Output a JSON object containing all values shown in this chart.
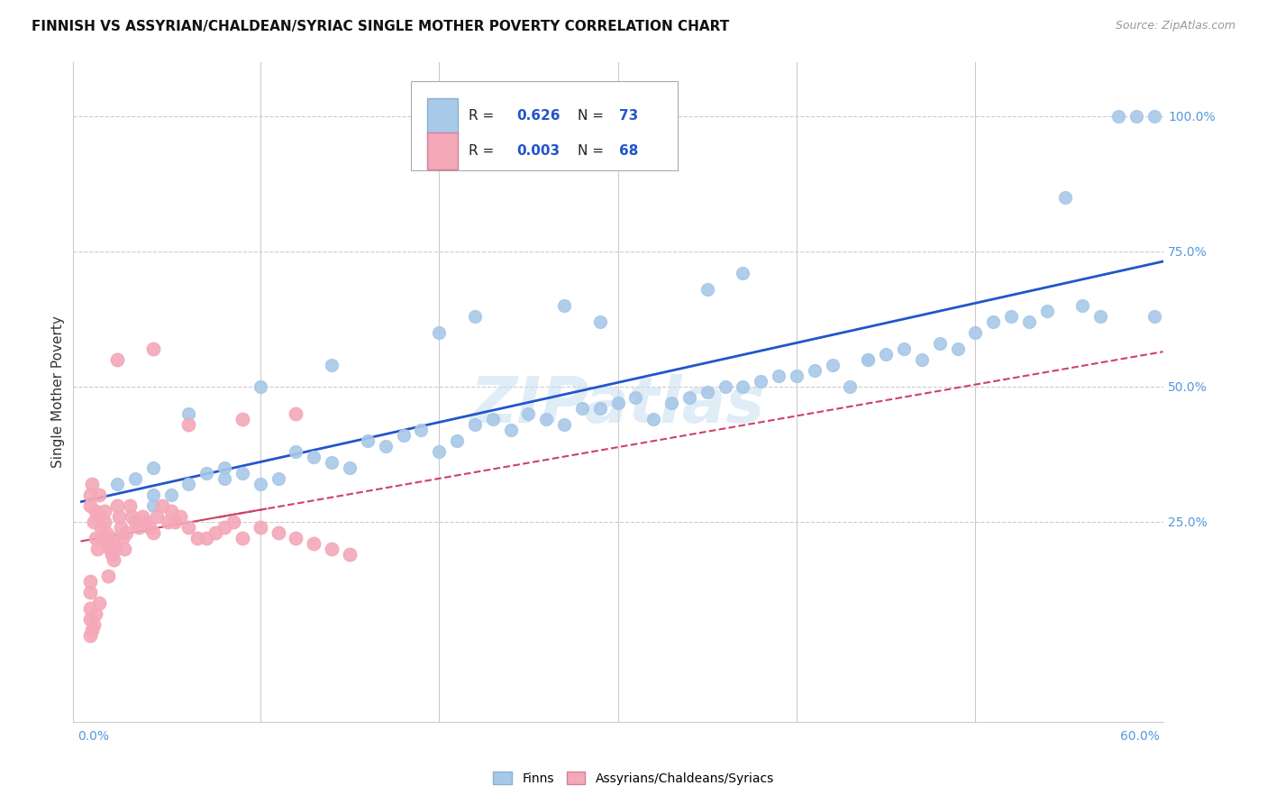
{
  "title": "FINNISH VS ASSYRIAN/CHALDEAN/SYRIAC SINGLE MOTHER POVERTY CORRELATION CHART",
  "source": "Source: ZipAtlas.com",
  "ylabel": "Single Mother Poverty",
  "xlim": [
    0.0,
    0.6
  ],
  "ylim": [
    0.0,
    1.05
  ],
  "watermark": "ZIPatlas",
  "blue_color": "#a8c8e8",
  "pink_color": "#f4a8b8",
  "trend_blue": "#2255cc",
  "trend_pink": "#cc4466",
  "legend_label1": "Finns",
  "legend_label2": "Assyrians/Chaldeans/Syriacs",
  "grid_color": "#cccccc",
  "background_color": "#ffffff",
  "blue_x": [
    0.02,
    0.03,
    0.04,
    0.04,
    0.05,
    0.06,
    0.07,
    0.08,
    0.08,
    0.09,
    0.1,
    0.11,
    0.12,
    0.13,
    0.14,
    0.15,
    0.16,
    0.17,
    0.18,
    0.19,
    0.2,
    0.21,
    0.22,
    0.23,
    0.24,
    0.25,
    0.26,
    0.27,
    0.28,
    0.29,
    0.3,
    0.31,
    0.32,
    0.33,
    0.34,
    0.35,
    0.36,
    0.37,
    0.38,
    0.39,
    0.4,
    0.41,
    0.42,
    0.43,
    0.44,
    0.45,
    0.46,
    0.47,
    0.48,
    0.49,
    0.5,
    0.51,
    0.52,
    0.53,
    0.54,
    0.55,
    0.56,
    0.57,
    0.58,
    0.59,
    0.6,
    0.6,
    0.37,
    0.35,
    0.27,
    0.2,
    0.14,
    0.1,
    0.06,
    0.04,
    0.29,
    0.22,
    0.44
  ],
  "blue_y": [
    0.32,
    0.33,
    0.28,
    0.35,
    0.3,
    0.32,
    0.34,
    0.33,
    0.35,
    0.34,
    0.32,
    0.33,
    0.38,
    0.37,
    0.36,
    0.35,
    0.4,
    0.39,
    0.41,
    0.42,
    0.38,
    0.4,
    0.43,
    0.44,
    0.42,
    0.45,
    0.44,
    0.43,
    0.46,
    0.46,
    0.47,
    0.48,
    0.44,
    0.47,
    0.48,
    0.49,
    0.5,
    0.5,
    0.51,
    0.52,
    0.52,
    0.53,
    0.54,
    0.5,
    0.55,
    0.56,
    0.57,
    0.55,
    0.58,
    0.57,
    0.6,
    0.62,
    0.63,
    0.62,
    0.64,
    0.85,
    0.65,
    0.63,
    1.0,
    1.0,
    1.0,
    0.63,
    0.71,
    0.68,
    0.65,
    0.6,
    0.54,
    0.5,
    0.45,
    0.3,
    0.62,
    0.63,
    0.55
  ],
  "pink_x": [
    0.005,
    0.005,
    0.006,
    0.007,
    0.008,
    0.008,
    0.009,
    0.01,
    0.01,
    0.011,
    0.012,
    0.013,
    0.013,
    0.014,
    0.015,
    0.016,
    0.017,
    0.018,
    0.018,
    0.019,
    0.02,
    0.021,
    0.022,
    0.023,
    0.024,
    0.025,
    0.027,
    0.028,
    0.03,
    0.032,
    0.034,
    0.036,
    0.038,
    0.04,
    0.042,
    0.045,
    0.048,
    0.05,
    0.052,
    0.055,
    0.06,
    0.065,
    0.07,
    0.075,
    0.08,
    0.085,
    0.09,
    0.1,
    0.11,
    0.12,
    0.13,
    0.14,
    0.15,
    0.12,
    0.09,
    0.06,
    0.04,
    0.02,
    0.015,
    0.01,
    0.008,
    0.007,
    0.006,
    0.005,
    0.005,
    0.005,
    0.005,
    0.005
  ],
  "pink_y": [
    0.3,
    0.28,
    0.32,
    0.25,
    0.22,
    0.27,
    0.2,
    0.3,
    0.26,
    0.24,
    0.22,
    0.25,
    0.27,
    0.23,
    0.21,
    0.2,
    0.19,
    0.18,
    0.22,
    0.2,
    0.28,
    0.26,
    0.24,
    0.22,
    0.2,
    0.23,
    0.28,
    0.26,
    0.25,
    0.24,
    0.26,
    0.25,
    0.24,
    0.23,
    0.26,
    0.28,
    0.25,
    0.27,
    0.25,
    0.26,
    0.24,
    0.22,
    0.22,
    0.23,
    0.24,
    0.25,
    0.22,
    0.24,
    0.23,
    0.22,
    0.21,
    0.2,
    0.19,
    0.45,
    0.44,
    0.43,
    0.57,
    0.55,
    0.15,
    0.1,
    0.08,
    0.06,
    0.05,
    0.04,
    0.07,
    0.09,
    0.12,
    0.14
  ]
}
